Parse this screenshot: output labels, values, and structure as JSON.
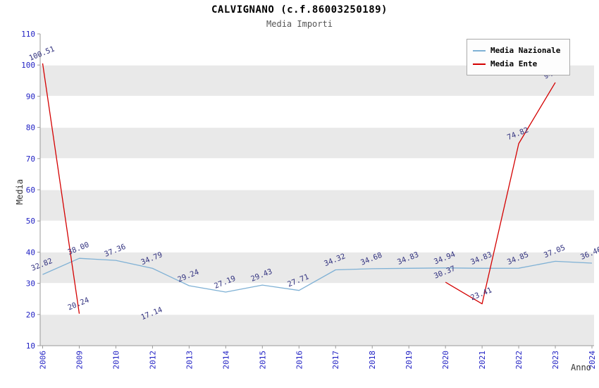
{
  "colors": {
    "background": "#ffffff",
    "band_gray": "#e9e9e9",
    "band_white": "#ffffff",
    "axis": "#999999",
    "tick_label": "#2222c4",
    "point_label": "#333380",
    "nazionale_line": "#7fb1d5",
    "ente_line": "#d40000",
    "title": "#000000",
    "subtitle": "#555555"
  },
  "chart_data": {
    "type": "line",
    "title": "CALVIGNANO (c.f.86003250189)",
    "subtitle": "Media Importi",
    "xlabel": "Anno",
    "ylabel": "Media",
    "ylim": [
      10,
      110
    ],
    "yticks": [
      10,
      20,
      30,
      40,
      50,
      60,
      70,
      80,
      90,
      100,
      110
    ],
    "grid": "horizontal-bands",
    "legend_position": "top-right",
    "categories": [
      "2006",
      "2009",
      "2010",
      "2012",
      "2013",
      "2014",
      "2015",
      "2016",
      "2017",
      "2018",
      "2019",
      "2020",
      "2021",
      "2022",
      "2023",
      "2024"
    ],
    "series": [
      {
        "name": "Media Nazionale",
        "color": "#7fb1d5",
        "values": [
          32.82,
          38.0,
          37.36,
          34.79,
          29.24,
          27.19,
          29.43,
          27.71,
          34.32,
          34.68,
          34.83,
          34.94,
          34.83,
          34.85,
          37.05,
          36.46
        ]
      },
      {
        "name": "Media Ente",
        "color": "#d40000",
        "values": [
          100.51,
          20.24,
          null,
          17.14,
          null,
          null,
          null,
          null,
          null,
          null,
          null,
          30.37,
          23.41,
          74.82,
          94.41,
          null
        ]
      }
    ]
  }
}
